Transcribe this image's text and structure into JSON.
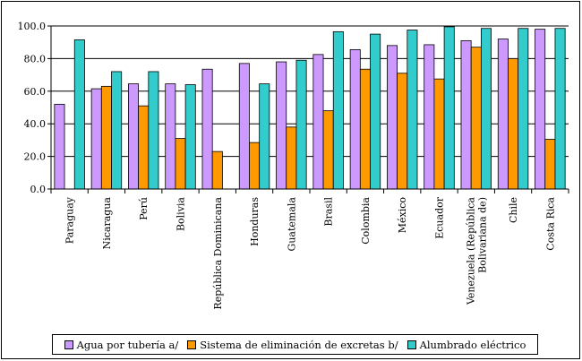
{
  "chart_data": {
    "type": "bar",
    "categories": [
      "Paraguay",
      "Nicaragua",
      "Perú",
      "Bolivia",
      "República Dominicana",
      "Honduras",
      "Guatemala",
      "Brasil",
      "Colombia",
      "México",
      "Ecuador",
      "Venezuela (República Bolivariana de)",
      "Chile",
      "Costa Rica"
    ],
    "category_lines": [
      [
        "Paraguay"
      ],
      [
        "Nicaragua"
      ],
      [
        "Perú"
      ],
      [
        "Bolivia"
      ],
      [
        "República Dominicana"
      ],
      [
        "Honduras"
      ],
      [
        "Guatemala"
      ],
      [
        "Brasil"
      ],
      [
        "Colombia"
      ],
      [
        "México"
      ],
      [
        "Ecuador"
      ],
      [
        "Venezuela (República",
        "Bolivariana de)"
      ],
      [
        "Chile"
      ],
      [
        "Costa Rica"
      ]
    ],
    "series": [
      {
        "name": "Agua  por tubería a/",
        "color": "#CC99FF",
        "values": [
          52,
          61.5,
          64.5,
          64.5,
          73.5,
          77,
          78,
          82.5,
          85.5,
          88,
          88.5,
          91,
          92,
          98
        ]
      },
      {
        "name": "Sistema de eliminación de excretas b/",
        "color": "#FF9900",
        "values": [
          null,
          63,
          51,
          31,
          23,
          28.5,
          38,
          48,
          73.5,
          71,
          67.5,
          87,
          80,
          30.5
        ]
      },
      {
        "name": "Alumbrado eléctrico",
        "color": "#33CCCC",
        "values": [
          91.5,
          72,
          72,
          64,
          0,
          64.5,
          79,
          96.5,
          95,
          97.5,
          99.5,
          98.5,
          98.5,
          98.5
        ]
      }
    ],
    "yticks": [
      "100.0",
      "80.0",
      "60.0",
      "40.0",
      "20.0",
      "0.0"
    ],
    "ylim": [
      0,
      100
    ],
    "title": "",
    "xlabel": "",
    "ylabel": "",
    "grid": true,
    "legend_position": "bottom"
  }
}
